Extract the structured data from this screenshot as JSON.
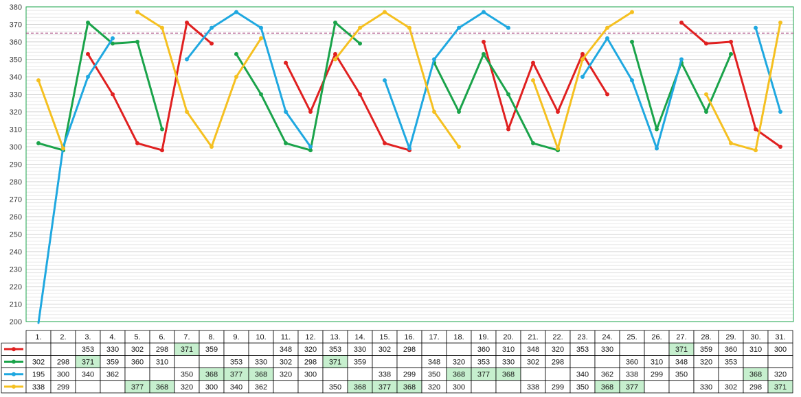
{
  "chart_data": {
    "type": "line",
    "ylim": [
      200,
      380
    ],
    "yticks": [
      200,
      210,
      220,
      230,
      240,
      250,
      260,
      270,
      280,
      290,
      300,
      310,
      320,
      330,
      340,
      350,
      360,
      370,
      380
    ],
    "reference_line": 365,
    "categories": [
      "1.",
      "2.",
      "3.",
      "4.",
      "5.",
      "6.",
      "7.",
      "8.",
      "9.",
      "10.",
      "11.",
      "12.",
      "13.",
      "14.",
      "15.",
      "16.",
      "17.",
      "18.",
      "19.",
      "20.",
      "21.",
      "22.",
      "23.",
      "24.",
      "25.",
      "26.",
      "27.",
      "28.",
      "29.",
      "30.",
      "31."
    ],
    "series": [
      {
        "color": "#e02020",
        "values": [
          null,
          null,
          353,
          330,
          302,
          298,
          371,
          359,
          null,
          null,
          348,
          320,
          353,
          330,
          302,
          298,
          null,
          null,
          360,
          310,
          348,
          320,
          353,
          330,
          null,
          null,
          371,
          359,
          360,
          310,
          300
        ]
      },
      {
        "color": "#1aa34a",
        "values": [
          302,
          298,
          371,
          359,
          360,
          310,
          null,
          null,
          353,
          330,
          302,
          298,
          371,
          359,
          null,
          null,
          348,
          320,
          353,
          330,
          302,
          298,
          null,
          null,
          360,
          310,
          348,
          320,
          353,
          null,
          null
        ]
      },
      {
        "color": "#1fa8e0",
        "values": [
          195,
          300,
          340,
          362,
          null,
          null,
          350,
          368,
          377,
          368,
          320,
          300,
          null,
          null,
          338,
          299,
          350,
          368,
          377,
          368,
          null,
          null,
          340,
          362,
          338,
          299,
          350,
          null,
          null,
          368,
          320
        ]
      },
      {
        "color": "#f5c020",
        "values": [
          338,
          299,
          null,
          null,
          377,
          368,
          320,
          300,
          340,
          362,
          null,
          null,
          350,
          368,
          377,
          368,
          320,
          300,
          null,
          null,
          338,
          299,
          350,
          368,
          377,
          null,
          null,
          330,
          302,
          298,
          371
        ]
      }
    ],
    "grid": true,
    "legend": "table-left"
  },
  "highlight_color": "#c6efce",
  "highlight_value_min": 365
}
